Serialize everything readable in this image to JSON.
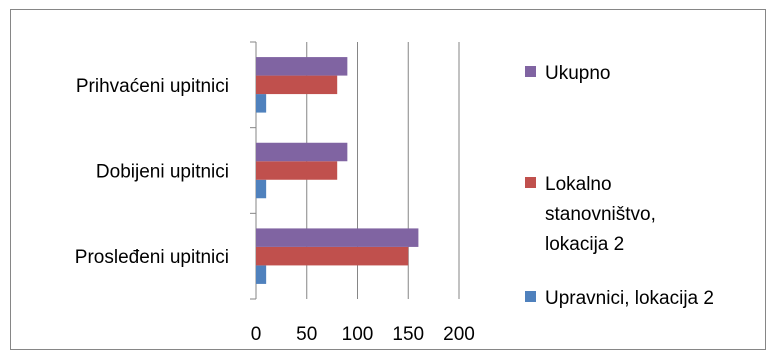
{
  "chart_data": {
    "type": "bar",
    "orientation": "horizontal",
    "categories": [
      "Prosleđeni upitnici",
      "Dobijeni upitnici",
      "Prihvaćeni upitnici"
    ],
    "series": [
      {
        "name": "Upravnici, lokacija 2",
        "color": "#4F81BD",
        "values": [
          10,
          10,
          10
        ]
      },
      {
        "name": "Lokalno stanovništvo, lokacija 2",
        "color": "#C0504D",
        "values": [
          150,
          80,
          80
        ]
      },
      {
        "name": "Ukupno",
        "color": "#8064A2",
        "values": [
          160,
          90,
          90
        ]
      }
    ],
    "xticks": [
      "0",
      "50",
      "100",
      "150",
      "200"
    ],
    "xlim": [
      0,
      200
    ],
    "grid": "vertical",
    "legend": {
      "placement": "right",
      "entries": [
        {
          "series": 2,
          "lines": [
            "Ukupno"
          ]
        },
        {
          "series": 1,
          "lines": [
            "Lokalno",
            "stanovništvo,",
            "lokacija 2"
          ]
        },
        {
          "series": 0,
          "lines": [
            "Upravnici, lokacija 2"
          ]
        }
      ]
    }
  }
}
